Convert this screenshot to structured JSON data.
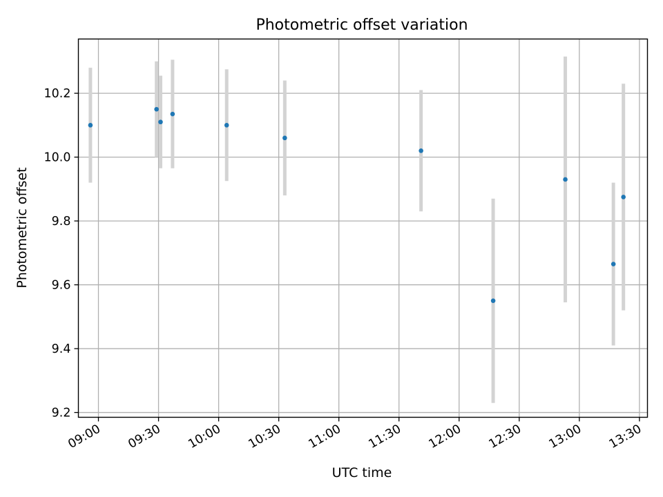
{
  "chart_data": {
    "type": "scatter",
    "title": "Photometric offset variation",
    "xlabel": "UTC time",
    "ylabel": "Photometric offset",
    "x_ticks": [
      "09:00",
      "09:30",
      "10:00",
      "10:30",
      "11:00",
      "11:30",
      "12:00",
      "12:30",
      "13:00",
      "13:30"
    ],
    "y_ticks": [
      "9.2",
      "9.4",
      "9.6",
      "9.8",
      "10.0",
      "10.2"
    ],
    "xlim": [
      "08:50",
      "13:34"
    ],
    "ylim": [
      9.185,
      10.37
    ],
    "grid": true,
    "colors": {
      "point": "#1f77b4",
      "errorbar": "#d3d3d3",
      "grid": "#b0b0b0"
    },
    "points": [
      {
        "x": "08:56",
        "y": 10.1,
        "err": 0.18
      },
      {
        "x": "09:29",
        "y": 10.15,
        "err": 0.15
      },
      {
        "x": "09:31",
        "y": 10.11,
        "err": 0.145
      },
      {
        "x": "09:37",
        "y": 10.135,
        "err": 0.17
      },
      {
        "x": "10:04",
        "y": 10.1,
        "err": 0.175
      },
      {
        "x": "10:33",
        "y": 10.06,
        "err": 0.18
      },
      {
        "x": "11:41",
        "y": 10.02,
        "err": 0.19
      },
      {
        "x": "12:17",
        "y": 9.55,
        "err": 0.32
      },
      {
        "x": "12:53",
        "y": 9.93,
        "err": 0.385
      },
      {
        "x": "13:17",
        "y": 9.665,
        "err": 0.255
      },
      {
        "x": "13:22",
        "y": 9.875,
        "err": 0.355
      }
    ]
  }
}
